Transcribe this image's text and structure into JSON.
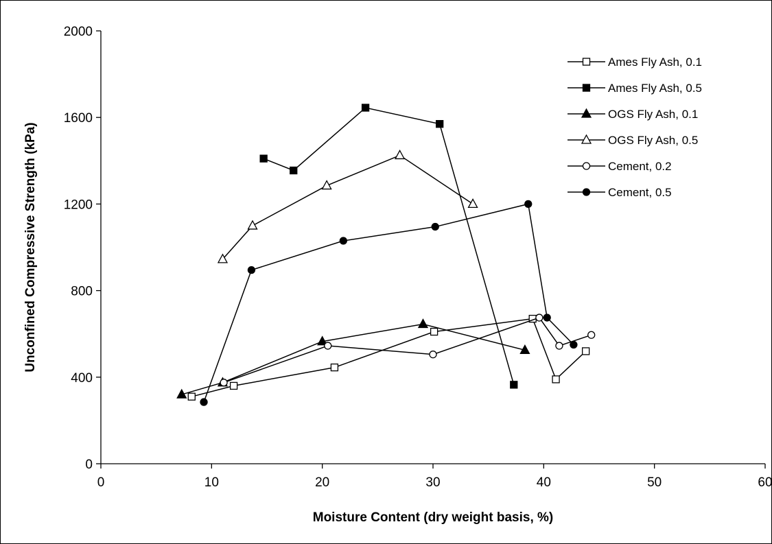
{
  "chart_data": {
    "type": "line",
    "xlabel": "Moisture Content (dry weight basis, %)",
    "ylabel": "Unconfined Compressive Strength (kPa)",
    "xlim": [
      0,
      60
    ],
    "ylim": [
      0,
      2000
    ],
    "x_ticks": [
      0,
      10,
      20,
      30,
      40,
      50,
      60
    ],
    "y_ticks": [
      0,
      400,
      800,
      1200,
      1600,
      2000
    ],
    "x_tick_labels": [
      "0",
      "10",
      "20",
      "30",
      "40",
      "50",
      "60"
    ],
    "y_tick_labels": [
      "0",
      "400",
      "800",
      "1200",
      "1600",
      "2000"
    ],
    "grid": false,
    "legend_position": "top-right",
    "series": [
      {
        "name": "Ames Fly Ash, 0.1",
        "marker": "square-open",
        "points": [
          [
            8.2,
            310
          ],
          [
            12.0,
            360
          ],
          [
            21.1,
            445
          ],
          [
            30.1,
            610
          ],
          [
            39.0,
            670
          ],
          [
            41.1,
            390
          ],
          [
            43.8,
            520
          ]
        ]
      },
      {
        "name": "Ames Fly Ash, 0.5",
        "marker": "square-filled",
        "points": [
          [
            14.7,
            1410
          ],
          [
            17.4,
            1355
          ],
          [
            23.9,
            1645
          ],
          [
            30.6,
            1570
          ],
          [
            37.3,
            365
          ]
        ]
      },
      {
        "name": "OGS Fly Ash, 0.1",
        "marker": "triangle-filled",
        "points": [
          [
            7.3,
            320
          ],
          [
            11.0,
            375
          ],
          [
            20.0,
            565
          ],
          [
            29.1,
            645
          ],
          [
            38.3,
            525
          ]
        ]
      },
      {
        "name": "OGS Fly Ash, 0.5",
        "marker": "triangle-open",
        "points": [
          [
            11.0,
            945
          ],
          [
            13.7,
            1100
          ],
          [
            20.4,
            1285
          ],
          [
            27.0,
            1425
          ],
          [
            33.6,
            1200
          ]
        ]
      },
      {
        "name": "Cement, 0.2",
        "marker": "circle-open",
        "points": [
          [
            11.1,
            375
          ],
          [
            20.5,
            545
          ],
          [
            30.0,
            505
          ],
          [
            39.6,
            675
          ],
          [
            41.4,
            545
          ],
          [
            44.3,
            595
          ]
        ]
      },
      {
        "name": "Cement, 0.5",
        "marker": "circle-filled",
        "points": [
          [
            9.3,
            285
          ],
          [
            13.6,
            895
          ],
          [
            21.9,
            1030
          ],
          [
            30.2,
            1095
          ],
          [
            38.6,
            1200
          ],
          [
            40.3,
            675
          ],
          [
            42.7,
            550
          ]
        ]
      }
    ]
  }
}
